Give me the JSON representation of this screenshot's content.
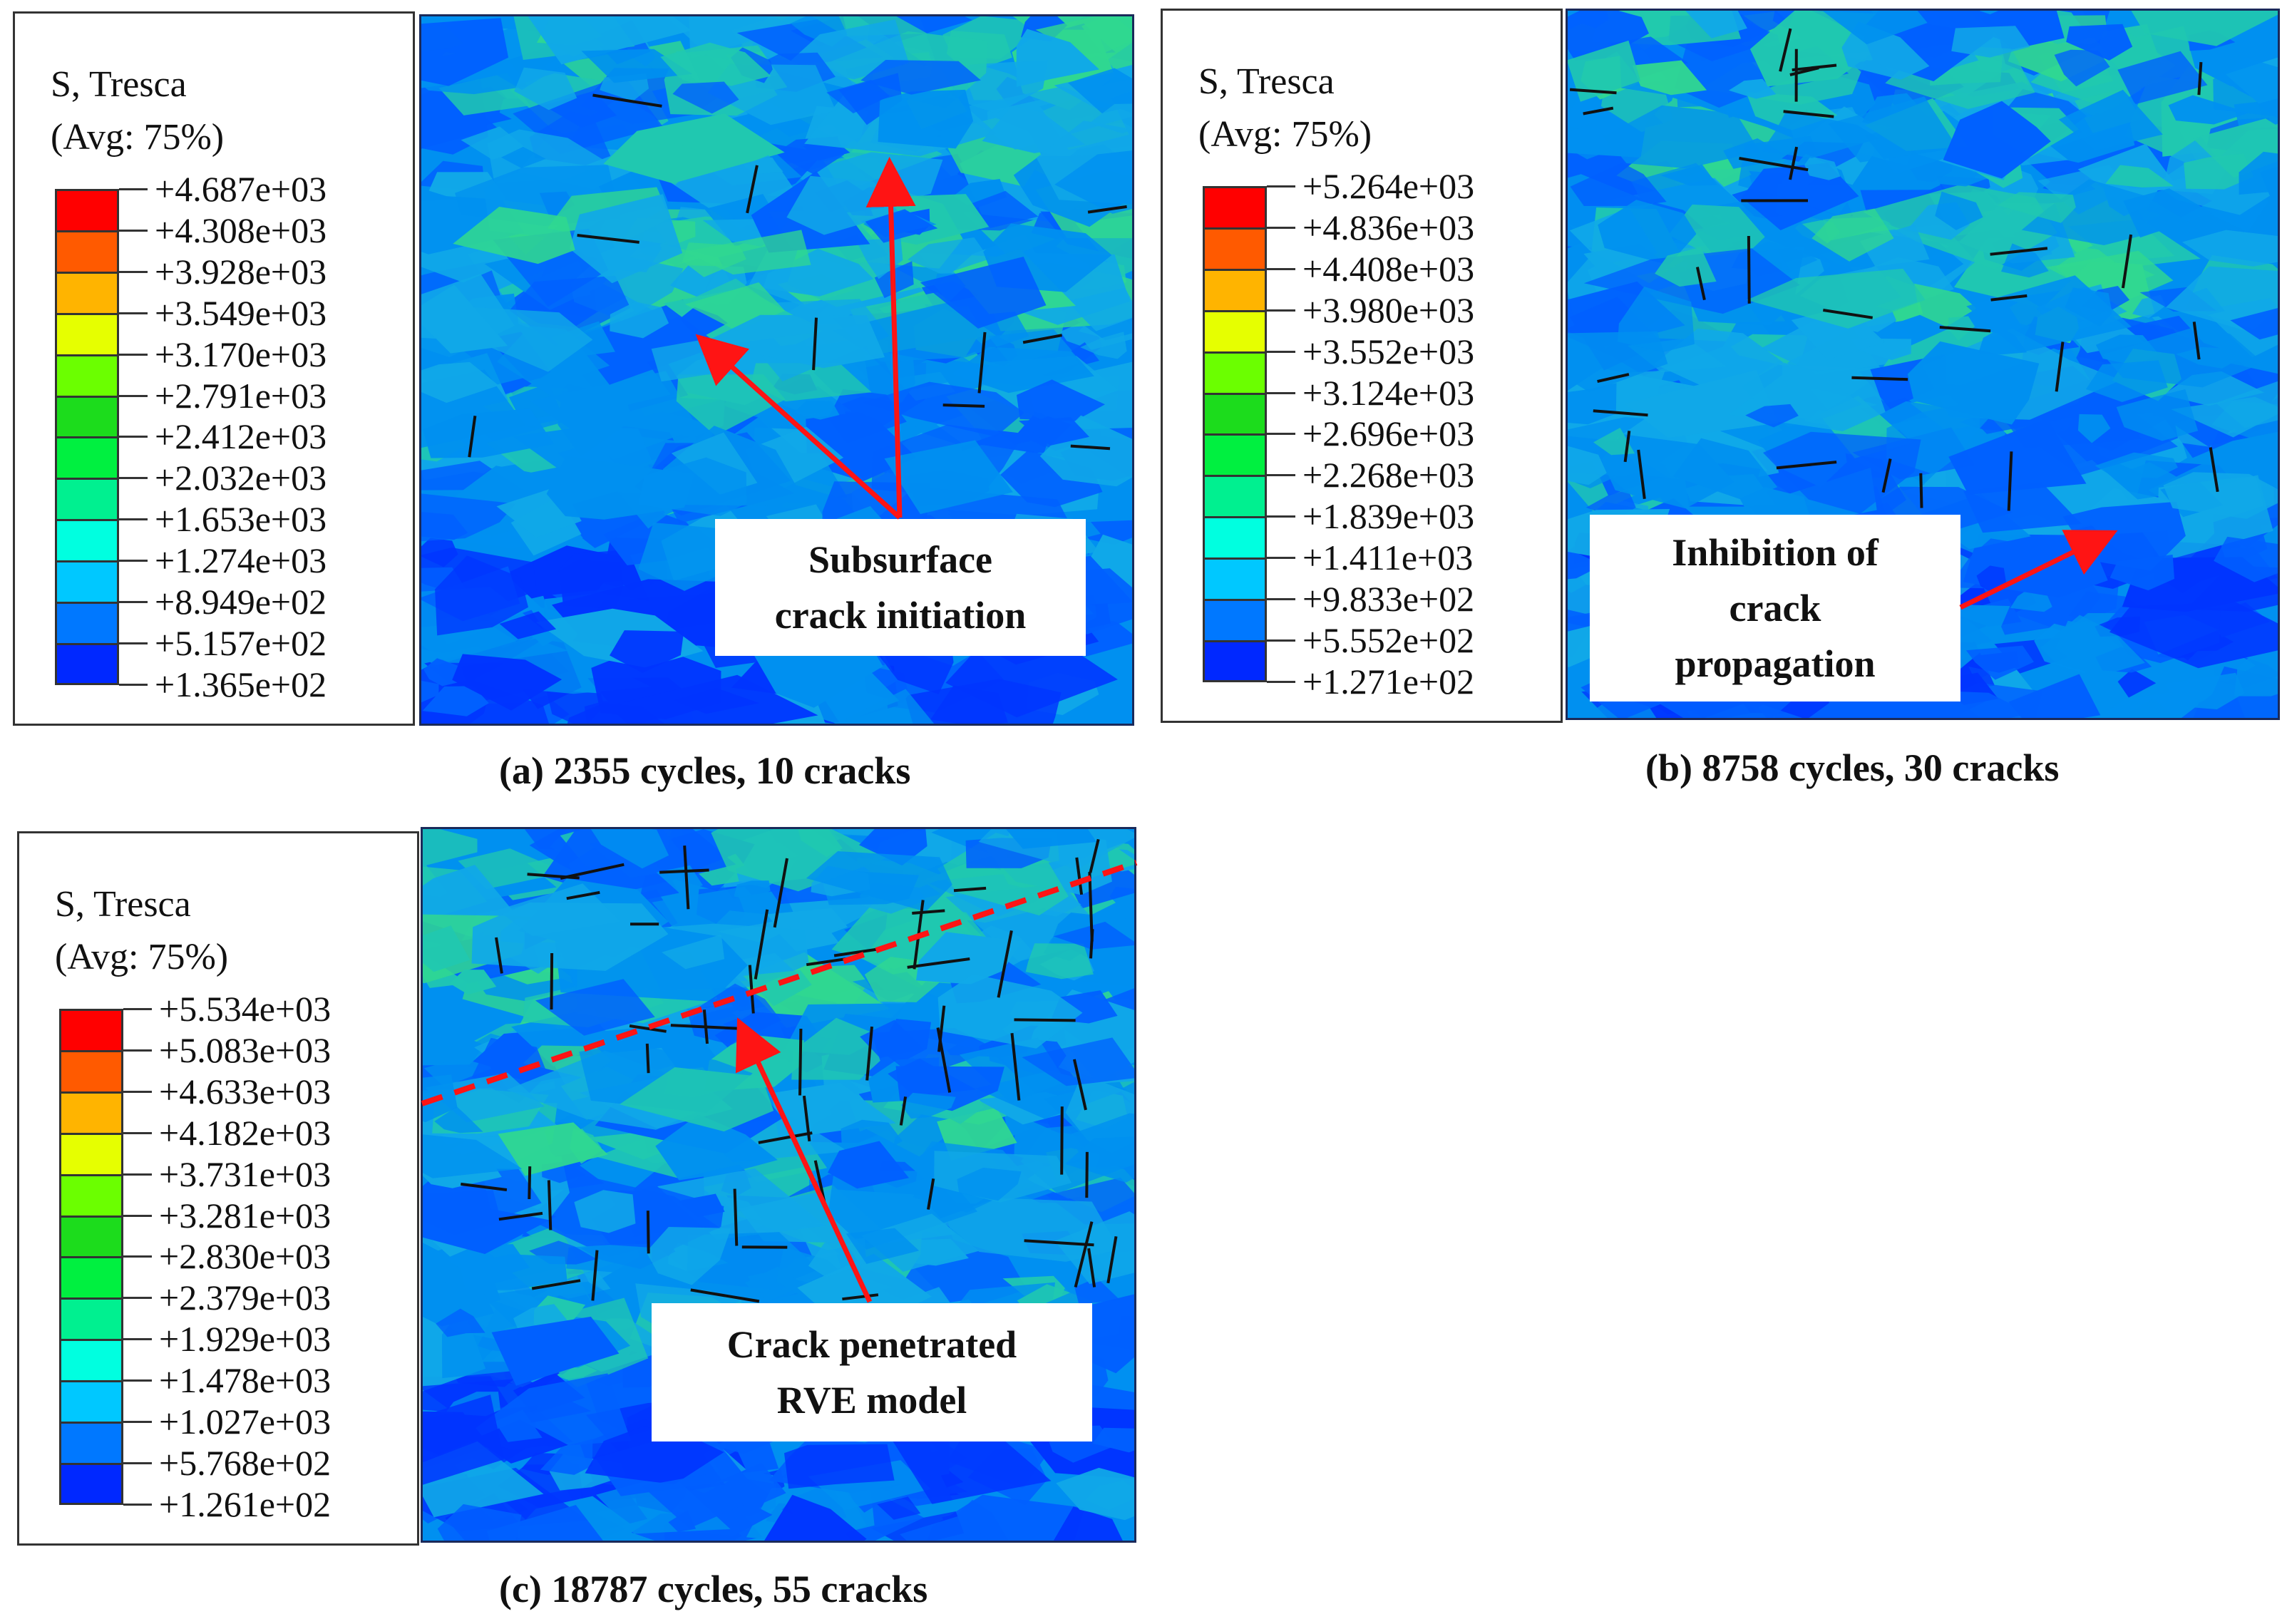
{
  "panels": [
    {
      "id": "a",
      "legend_title_line1": "S, Tresca",
      "legend_title_line2": "(Avg: 75%)",
      "legend_values": [
        "+4.687e+03",
        "+4.308e+03",
        "+3.928e+03",
        "+3.549e+03",
        "+3.170e+03",
        "+2.791e+03",
        "+2.412e+03",
        "+2.032e+03",
        "+1.653e+03",
        "+1.274e+03",
        "+8.949e+02",
        "+5.157e+02",
        "+1.365e+02"
      ],
      "callout": "Subsurface\ncrack initiation",
      "caption": "(a) 2355 cycles, 10 cracks",
      "crack_count": 10
    },
    {
      "id": "b",
      "legend_title_line1": "S, Tresca",
      "legend_title_line2": "(Avg: 75%)",
      "legend_values": [
        "+5.264e+03",
        "+4.836e+03",
        "+4.408e+03",
        "+3.980e+03",
        "+3.552e+03",
        "+3.124e+03",
        "+2.696e+03",
        "+2.268e+03",
        "+1.839e+03",
        "+1.411e+03",
        "+9.833e+02",
        "+5.552e+02",
        "+1.271e+02"
      ],
      "callout": "Inhibition of\ncrack\npropagation",
      "caption": "(b) 8758 cycles, 30 cracks",
      "crack_count": 30
    },
    {
      "id": "c",
      "legend_title_line1": "S, Tresca",
      "legend_title_line2": "(Avg: 75%)",
      "legend_values": [
        "+5.534e+03",
        "+5.083e+03",
        "+4.633e+03",
        "+4.182e+03",
        "+3.731e+03",
        "+3.281e+03",
        "+2.830e+03",
        "+2.379e+03",
        "+1.929e+03",
        "+1.478e+03",
        "+1.027e+03",
        "+5.768e+02",
        "+1.261e+02"
      ],
      "callout": "Crack penetrated\nRVE model",
      "caption": "(c) 18787 cycles, 55 cracks",
      "crack_count": 55
    }
  ],
  "legend_colors": [
    "#ff0000",
    "#ff5a00",
    "#ffb400",
    "#e6ff00",
    "#6bff00",
    "#1cdc1c",
    "#00f040",
    "#00f090",
    "#00ffe0",
    "#00c8ff",
    "#0078ff",
    "#0028ff"
  ],
  "contour_palette": [
    "#0035ff",
    "#0060ff",
    "#0090f0",
    "#10a8e8",
    "#20c8b0",
    "#30d890"
  ],
  "annotation_color": "#ff1414",
  "crack_color": "#111111"
}
